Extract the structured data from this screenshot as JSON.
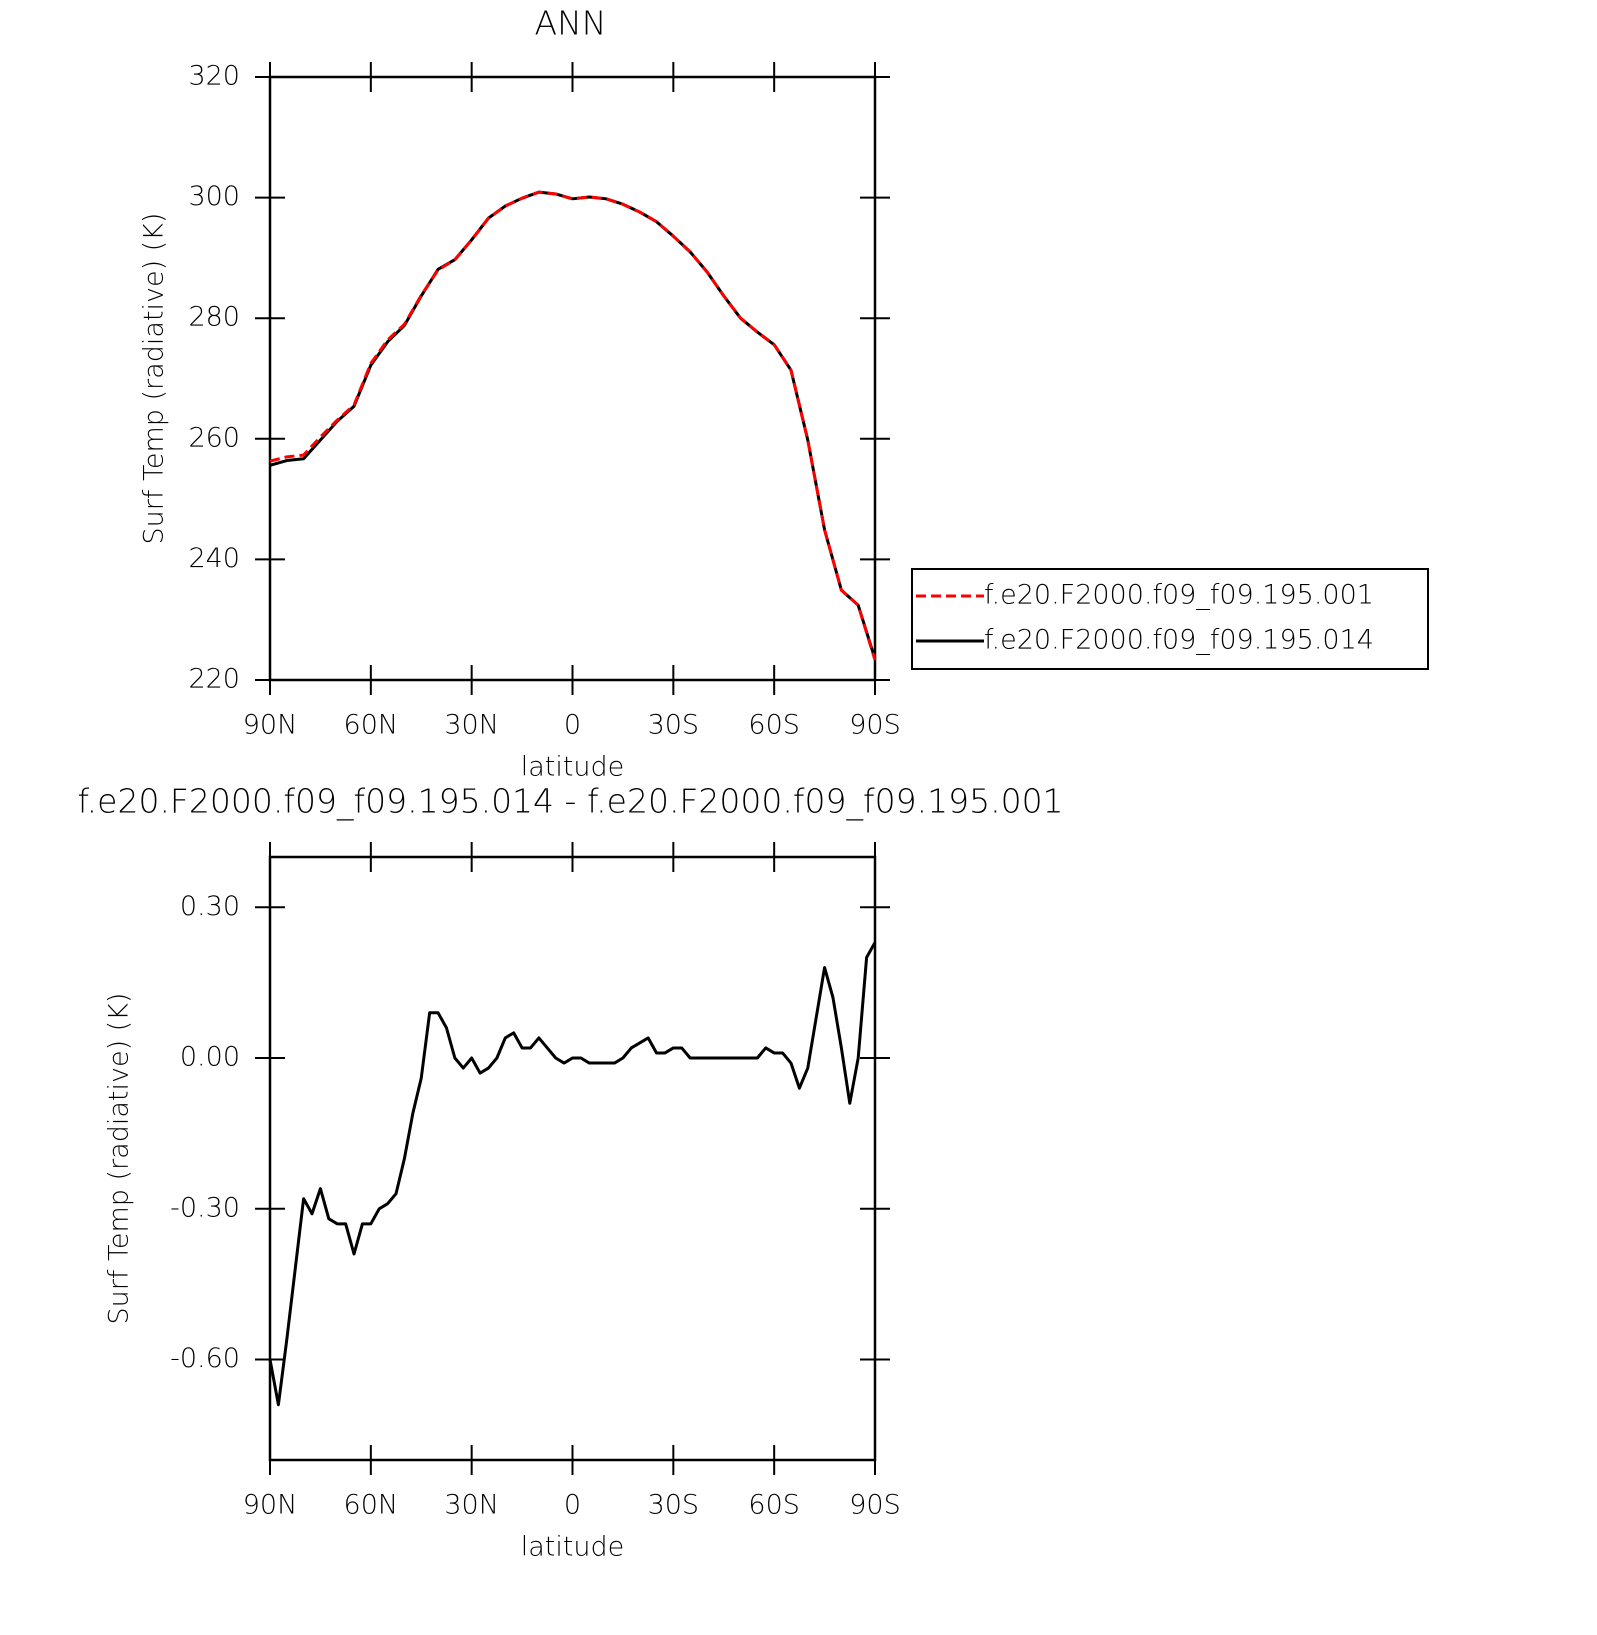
{
  "chart_data": [
    {
      "type": "line",
      "title": "ANN",
      "xlabel": "latitude",
      "ylabel": "Surf Temp (radiative) (K)",
      "x": [
        90,
        85,
        80,
        75,
        70,
        65,
        60,
        55,
        50,
        45,
        40,
        35,
        30,
        25,
        20,
        15,
        10,
        5,
        0,
        -5,
        -10,
        -15,
        -20,
        -25,
        -30,
        -35,
        -40,
        -45,
        -50,
        -55,
        -60,
        -65,
        -70,
        -75,
        -80,
        -85,
        -90
      ],
      "series": [
        {
          "name": "f.e20.F2000.f09_f09.195.001",
          "color": "#ff0000",
          "style": "dashed",
          "values": [
            256.3,
            257.0,
            257.3,
            260.3,
            263.1,
            265.6,
            272.5,
            276.4,
            279.0,
            283.8,
            288.0,
            289.7,
            293.0,
            296.6,
            298.6,
            299.9,
            300.9,
            300.6,
            299.8,
            300.1,
            299.8,
            298.9,
            297.6,
            296.0,
            293.6,
            291.0,
            287.7,
            283.7,
            280.0,
            277.7,
            275.6,
            271.4,
            259.8,
            244.9,
            234.9,
            232.4,
            223.3
          ]
        },
        {
          "name": "f.e20.F2000.f09_f09.195.014",
          "color": "#000000",
          "style": "solid",
          "values": [
            255.6,
            256.4,
            256.7,
            259.8,
            262.9,
            265.4,
            272.2,
            276.1,
            278.8,
            283.7,
            288.1,
            289.7,
            293.0,
            296.6,
            298.6,
            299.9,
            300.9,
            300.6,
            299.8,
            300.1,
            299.8,
            298.9,
            297.6,
            296.0,
            293.6,
            291.0,
            287.7,
            283.7,
            280.0,
            277.7,
            275.6,
            271.4,
            259.8,
            244.9,
            234.9,
            232.4,
            223.5
          ]
        }
      ],
      "xlim": [
        90,
        -90
      ],
      "xticks": [
        {
          "value": 90,
          "label": "90N"
        },
        {
          "value": 60,
          "label": "60N"
        },
        {
          "value": 30,
          "label": "30N"
        },
        0,
        {
          "value": -30,
          "label": "30S"
        },
        {
          "value": -60,
          "label": "60S"
        },
        {
          "value": -90,
          "label": "90S"
        }
      ],
      "ylim": [
        220,
        320
      ],
      "yticks": [
        220,
        240,
        260,
        280,
        300,
        320
      ],
      "legend": "outside-right"
    },
    {
      "type": "line",
      "title": "f.e20.F2000.f09_f09.195.014 - f.e20.F2000.f09_f09.195.001",
      "xlabel": "latitude",
      "ylabel": "Surf Temp (radiative) (K)",
      "x": [
        90,
        87.5,
        85,
        82.5,
        80,
        77.5,
        75,
        72.5,
        70,
        67.5,
        65,
        62.5,
        60,
        57.5,
        55,
        52.5,
        50,
        47.5,
        45,
        42.5,
        40,
        37.5,
        35,
        32.5,
        30,
        27.5,
        25,
        22.5,
        20,
        17.5,
        15,
        12.5,
        10,
        7.5,
        5,
        2.5,
        0,
        -2.5,
        -5,
        -7.5,
        -10,
        -12.5,
        -15,
        -17.5,
        -20,
        -22.5,
        -25,
        -27.5,
        -30,
        -32.5,
        -35,
        -37.5,
        -40,
        -42.5,
        -45,
        -47.5,
        -50,
        -52.5,
        -55,
        -57.5,
        -60,
        -62.5,
        -65,
        -67.5,
        -70,
        -72.5,
        -75,
        -77.5,
        -80,
        -82.5,
        -85,
        -87.5,
        -90
      ],
      "values": [
        -0.6,
        -0.69,
        -0.56,
        -0.42,
        -0.28,
        -0.31,
        -0.26,
        -0.32,
        -0.33,
        -0.33,
        -0.39,
        -0.33,
        -0.33,
        -0.3,
        -0.29,
        -0.27,
        -0.2,
        -0.11,
        -0.04,
        0.09,
        0.09,
        0.06,
        0.0,
        -0.02,
        0.0,
        -0.03,
        -0.02,
        0.0,
        0.04,
        0.05,
        0.02,
        0.02,
        0.04,
        0.02,
        0.0,
        -0.01,
        0.0,
        0.0,
        -0.01,
        -0.01,
        -0.01,
        -0.01,
        0.0,
        0.02,
        0.03,
        0.04,
        0.01,
        0.01,
        0.02,
        0.02,
        0.0,
        0.0,
        0.0,
        0.0,
        0.0,
        0.0,
        0.0,
        0.0,
        0.0,
        0.02,
        0.01,
        0.01,
        -0.01,
        -0.06,
        -0.02,
        0.08,
        0.18,
        0.12,
        0.02,
        -0.09,
        0.0,
        0.2,
        0.23
      ],
      "color": "#000000",
      "xlim": [
        90,
        -90
      ],
      "xticks": [
        {
          "value": 90,
          "label": "90N"
        },
        {
          "value": 60,
          "label": "60N"
        },
        {
          "value": 30,
          "label": "30N"
        },
        0,
        {
          "value": -30,
          "label": "30S"
        },
        {
          "value": -60,
          "label": "60S"
        },
        {
          "value": -90,
          "label": "90S"
        }
      ],
      "ylim": [
        -0.8,
        0.4
      ],
      "yticks": [
        {
          "value": -0.6,
          "label": "-0.60"
        },
        {
          "value": -0.3,
          "label": "-0.30"
        },
        {
          "value": 0,
          "label": "0.00"
        },
        {
          "value": 0.3,
          "label": "0.30"
        }
      ]
    }
  ]
}
